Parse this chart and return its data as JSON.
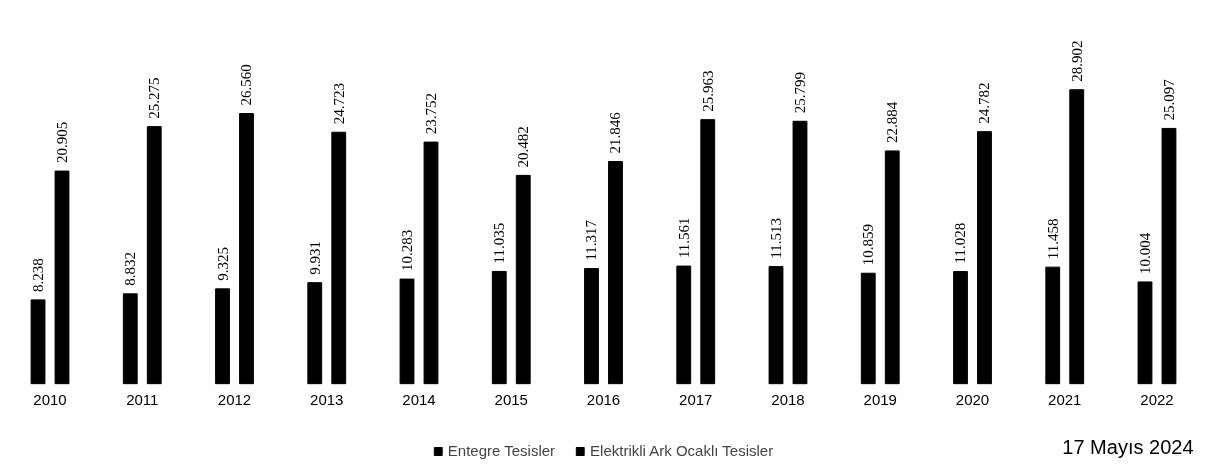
{
  "chart_data": {
    "type": "bar",
    "categories": [
      "2010",
      "2011",
      "2012",
      "2013",
      "2014",
      "2015",
      "2016",
      "2017",
      "2018",
      "2019",
      "2020",
      "2021",
      "2022"
    ],
    "series": [
      {
        "name": "Entegre Tesisler",
        "color": "#000000",
        "values": [
          8238,
          8832,
          9325,
          9931,
          10283,
          11035,
          11317,
          11561,
          11513,
          10859,
          11028,
          11458,
          10004
        ],
        "value_labels": [
          "8.238",
          "8.832",
          "9.325",
          "9.931",
          "10.283",
          "11.035",
          "11.317",
          "11.561",
          "11.513",
          "10.859",
          "11.028",
          "11.458",
          "10.004"
        ]
      },
      {
        "name": "Elektrikli Ark Ocaklı Tesisler",
        "color": "#000000",
        "values": [
          20905,
          25275,
          26560,
          24723,
          23752,
          20482,
          21846,
          25963,
          25799,
          22884,
          24782,
          28902,
          25097
        ],
        "value_labels": [
          "20.905",
          "25.275",
          "26.560",
          "24.723",
          "23.752",
          "20.482",
          "21.846",
          "25.963",
          "25.799",
          "22.884",
          "24.782",
          "28.902",
          "25.097"
        ]
      }
    ],
    "legend": "bottom",
    "grid": false,
    "annotations": [
      "17 Mayıs 2024"
    ]
  }
}
